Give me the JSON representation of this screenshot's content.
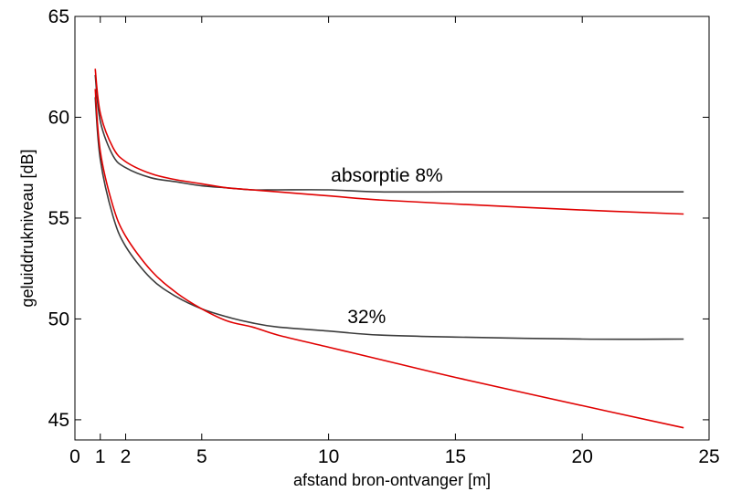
{
  "chart_data": {
    "type": "line",
    "title": "",
    "xlabel": "afstand bron-ontvanger [m]",
    "ylabel": "geluiddrukniveau  [dB]",
    "xlim": [
      0,
      25
    ],
    "ylim": [
      44,
      65
    ],
    "xticks": [
      0,
      1,
      2,
      5,
      10,
      15,
      20,
      25
    ],
    "xtick_labels": [
      "0",
      "1",
      "2",
      "5",
      "10",
      "15",
      "20",
      "25"
    ],
    "yticks": [
      45,
      50,
      55,
      60,
      65
    ],
    "ytick_labels": [
      "45",
      "50",
      "55",
      "60",
      "65"
    ],
    "grid": false,
    "legend": "none",
    "annotations": [
      {
        "text": "absorptie 8%",
        "x": 12.3,
        "y": 56.8
      },
      {
        "text": "32%",
        "x": 11.5,
        "y": 49.8
      }
    ],
    "series": [
      {
        "color": "#3c3c3c",
        "x": [
          0.8,
          1,
          1.5,
          2,
          3,
          4,
          5,
          6,
          7,
          8,
          10,
          12,
          15,
          20,
          24
        ],
        "y": [
          62.1,
          59.8,
          58.1,
          57.5,
          57.0,
          56.8,
          56.6,
          56.5,
          56.4,
          56.4,
          56.4,
          56.3,
          56.3,
          56.3,
          56.3
        ]
      },
      {
        "color": "#e00000",
        "x": [
          0.8,
          1,
          1.5,
          2,
          3,
          4,
          5,
          6,
          7,
          8,
          10,
          12,
          15,
          20,
          24
        ],
        "y": [
          62.4,
          60.2,
          58.5,
          57.8,
          57.2,
          56.9,
          56.7,
          56.5,
          56.4,
          56.3,
          56.1,
          55.9,
          55.7,
          55.4,
          55.2
        ]
      },
      {
        "color": "#3c3c3c",
        "x": [
          0.8,
          1,
          1.5,
          2,
          3,
          4,
          5,
          6,
          7,
          8,
          10,
          12,
          15,
          20,
          24
        ],
        "y": [
          61.0,
          57.9,
          55.1,
          53.6,
          52.0,
          51.1,
          50.5,
          50.1,
          49.8,
          49.6,
          49.4,
          49.2,
          49.1,
          49.0,
          49.0
        ]
      },
      {
        "color": "#e00000",
        "x": [
          0.8,
          1,
          1.5,
          2,
          3,
          4,
          5,
          6,
          7,
          8,
          10,
          12,
          15,
          20,
          24
        ],
        "y": [
          61.4,
          58.3,
          55.6,
          54.1,
          52.4,
          51.3,
          50.5,
          49.9,
          49.6,
          49.2,
          48.6,
          48.0,
          47.1,
          45.7,
          44.6
        ]
      }
    ]
  }
}
